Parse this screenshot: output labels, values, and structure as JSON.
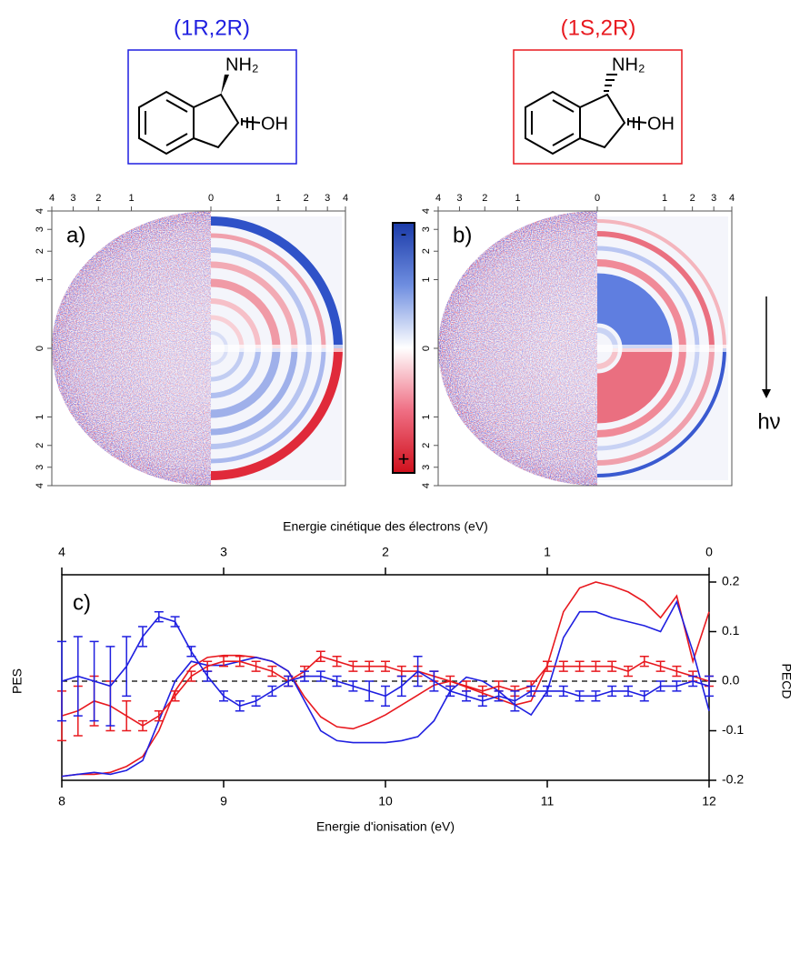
{
  "molecules": [
    {
      "label": "(1R,2R)",
      "color": "#1f1fe0",
      "amine": "NH₂",
      "hydroxyl": "OH"
    },
    {
      "label": "(1S,2R)",
      "color": "#e8191f",
      "amine": "NH₂",
      "hydroxyl": "OH"
    }
  ],
  "images": [
    {
      "label": "a)"
    },
    {
      "label": "b)"
    }
  ],
  "vmi_lim": [
    -4,
    4
  ],
  "vmi_ticks": [
    {
      "value": -4,
      "label": "4"
    },
    {
      "value": -3,
      "label": "3"
    },
    {
      "value": -2,
      "label": "2"
    },
    {
      "value": -1,
      "label": "1"
    },
    0,
    1,
    2,
    3,
    4
  ],
  "colorbar": {
    "top": "-",
    "bottom": "+"
  },
  "annotation": "hν",
  "chart_data": {
    "type": "line",
    "label": "c)",
    "xlabel": "Energie d'ionisation (eV)",
    "x2label": "Energie cinétique des électrons (eV)",
    "ylabel": "PES",
    "y2label": "PECD",
    "xlim": [
      8,
      12
    ],
    "xticks": [
      8,
      9,
      10,
      11,
      12
    ],
    "x2lim": [
      4,
      0
    ],
    "x2ticks": [
      4,
      3,
      2,
      1,
      0
    ],
    "ylim": [
      0,
      1
    ],
    "y2lim": [
      -0.2,
      0.2
    ],
    "y2ticks": [
      -0.2,
      -0.1,
      {
        "value": 0,
        "label": "0.0"
      },
      0.1,
      0.2
    ],
    "zero_line": true,
    "x": [
      8.0,
      8.1,
      8.2,
      8.3,
      8.4,
      8.5,
      8.6,
      8.7,
      8.8,
      8.9,
      9.0,
      9.1,
      9.2,
      9.3,
      9.4,
      9.5,
      9.6,
      9.7,
      9.8,
      9.9,
      10.0,
      10.1,
      10.2,
      10.3,
      10.4,
      10.5,
      10.6,
      10.7,
      10.8,
      10.9,
      11.0,
      11.1,
      11.2,
      11.3,
      11.4,
      11.5,
      11.6,
      11.7,
      11.8,
      11.9,
      12.0
    ],
    "series": [
      {
        "color": "#e8191f",
        "axis": "y",
        "values": [
          0.02,
          0.03,
          0.03,
          0.04,
          0.07,
          0.12,
          0.25,
          0.45,
          0.57,
          0.62,
          0.63,
          0.63,
          0.62,
          0.6,
          0.55,
          0.42,
          0.32,
          0.27,
          0.26,
          0.29,
          0.33,
          0.38,
          0.43,
          0.48,
          0.5,
          0.47,
          0.44,
          0.41,
          0.38,
          0.4,
          0.58,
          0.85,
          0.97,
          1.0,
          0.98,
          0.95,
          0.9,
          0.82,
          0.93,
          0.6,
          0.85
        ]
      },
      {
        "color": "#1f1fe0",
        "axis": "y",
        "values": [
          0.02,
          0.03,
          0.04,
          0.03,
          0.05,
          0.1,
          0.3,
          0.5,
          0.6,
          0.58,
          0.58,
          0.6,
          0.62,
          0.6,
          0.55,
          0.4,
          0.25,
          0.2,
          0.19,
          0.19,
          0.19,
          0.2,
          0.22,
          0.3,
          0.45,
          0.52,
          0.5,
          0.45,
          0.38,
          0.33,
          0.45,
          0.72,
          0.85,
          0.85,
          0.82,
          0.8,
          0.78,
          0.75,
          0.9,
          0.65,
          0.35
        ]
      },
      {
        "color": "#e8191f",
        "axis": "y2",
        "values": [
          -0.07,
          -0.06,
          -0.04,
          -0.05,
          -0.07,
          -0.09,
          -0.07,
          -0.03,
          0.01,
          0.03,
          0.04,
          0.04,
          0.03,
          0.02,
          0.0,
          0.02,
          0.05,
          0.04,
          0.03,
          0.03,
          0.03,
          0.02,
          0.02,
          0.01,
          0.0,
          -0.01,
          -0.02,
          -0.01,
          -0.02,
          -0.01,
          0.03,
          0.03,
          0.03,
          0.03,
          0.03,
          0.02,
          0.04,
          0.03,
          0.02,
          0.01,
          0.0
        ],
        "errors": [
          0.05,
          0.05,
          0.05,
          0.05,
          0.03,
          0.01,
          0.01,
          0.01,
          0.01,
          0.01,
          0.01,
          0.01,
          0.01,
          0.01,
          0.01,
          0.01,
          0.01,
          0.01,
          0.01,
          0.01,
          0.01,
          0.01,
          0.01,
          0.01,
          0.01,
          0.01,
          0.01,
          0.01,
          0.01,
          0.01,
          0.01,
          0.01,
          0.01,
          0.01,
          0.01,
          0.01,
          0.01,
          0.01,
          0.01,
          0.01,
          0.01
        ]
      },
      {
        "color": "#1f1fe0",
        "axis": "y2",
        "values": [
          0.0,
          0.01,
          0.0,
          -0.01,
          0.03,
          0.09,
          0.13,
          0.12,
          0.06,
          0.01,
          -0.03,
          -0.05,
          -0.04,
          -0.02,
          0.0,
          0.01,
          0.01,
          0.0,
          -0.01,
          -0.02,
          -0.03,
          -0.01,
          0.02,
          0.0,
          -0.02,
          -0.03,
          -0.04,
          -0.03,
          -0.04,
          -0.02,
          -0.02,
          -0.02,
          -0.03,
          -0.03,
          -0.02,
          -0.02,
          -0.03,
          -0.01,
          -0.01,
          0.0,
          -0.01
        ],
        "errors": [
          0.08,
          0.08,
          0.08,
          0.08,
          0.06,
          0.02,
          0.01,
          0.01,
          0.01,
          0.01,
          0.01,
          0.01,
          0.01,
          0.01,
          0.01,
          0.01,
          0.01,
          0.01,
          0.01,
          0.02,
          0.02,
          0.02,
          0.03,
          0.02,
          0.01,
          0.01,
          0.01,
          0.01,
          0.02,
          0.01,
          0.01,
          0.01,
          0.01,
          0.01,
          0.01,
          0.01,
          0.01,
          0.01,
          0.01,
          0.01,
          0.02
        ]
      }
    ]
  }
}
